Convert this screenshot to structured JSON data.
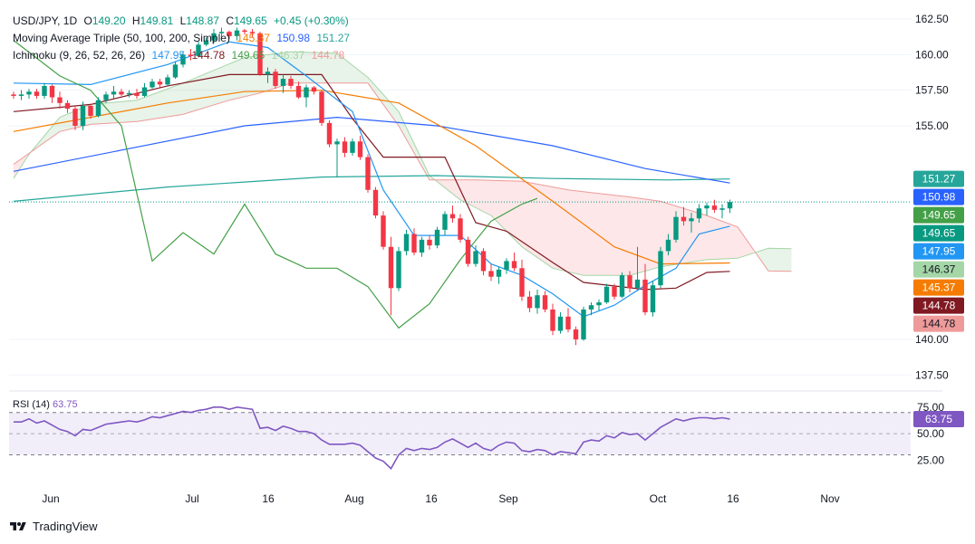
{
  "header": {
    "symbol": "USD/JPY, 1D",
    "ohlc": {
      "O": "149.20",
      "H": "149.81",
      "L": "148.87",
      "C": "149.65"
    },
    "change": "+0.45 (+0.30%)",
    "ma_label": "Moving Average Triple (50, 100, 200, Simple)",
    "ma_values": [
      "145.37",
      "150.98",
      "151.27"
    ],
    "ichimoku_label": "Ichimoku (9, 26, 52, 26, 26)",
    "ichimoku_values": [
      "147.95",
      "144.78",
      "149.65",
      "146.37",
      "144.78"
    ]
  },
  "colors": {
    "up": "#089981",
    "down": "#f23645",
    "ma50": "#f57c00",
    "ma100": "#2962ff",
    "ma200": "#26a69a",
    "tenkan": "#2196f3",
    "kijun": "#801922",
    "chikou": "#43a047",
    "spanA": "#a5d6a7",
    "spanB": "#ef9a9a",
    "rsi": "#7e57c2"
  },
  "price_axis": {
    "ticks": [
      "162.50",
      "160.00",
      "157.50",
      "155.00",
      "140.00",
      "137.50"
    ]
  },
  "price_labels": [
    {
      "text": "151.27",
      "value": 151.27,
      "bg": "#26a69a"
    },
    {
      "text": "150.98",
      "value": 150.98,
      "bg": "#2962ff"
    },
    {
      "text": "149.65",
      "value": 149.65,
      "bg": "#43a047"
    },
    {
      "text": "149.65",
      "value": 149.65,
      "bg": "#089981"
    },
    {
      "text": "147.95",
      "value": 147.95,
      "bg": "#2196f3"
    },
    {
      "text": "146.37",
      "value": 146.37,
      "bg": "#a5d6a7"
    },
    {
      "text": "145.37",
      "value": 145.37,
      "bg": "#f57c00"
    },
    {
      "text": "144.78",
      "value": 144.78,
      "bg": "#801922"
    },
    {
      "text": "144.78",
      "value": 144.78,
      "bg": "#ef9a9a"
    }
  ],
  "time_axis": {
    "ticks": [
      "Jun",
      "Jul",
      "16",
      "Aug",
      "16",
      "Sep",
      "Oct",
      "16",
      "Nov"
    ]
  },
  "rsi": {
    "label": "RSI (14)",
    "value": "63.75",
    "ticks": [
      "75.00",
      "50.00",
      "25.00"
    ],
    "upper": 70,
    "lower": 30
  },
  "chart_data": {
    "type": "candlestick",
    "ylim": [
      136.5,
      163.2
    ],
    "candles": [
      [
        157.2,
        157.4,
        156.9,
        157.1
      ],
      [
        157.1,
        157.5,
        156.8,
        157.2
      ],
      [
        157.2,
        157.6,
        156.9,
        157.4
      ],
      [
        157.4,
        157.6,
        156.9,
        157.1
      ],
      [
        157.1,
        158.0,
        156.9,
        157.8
      ],
      [
        157.8,
        157.9,
        156.6,
        157.0
      ],
      [
        157.0,
        157.4,
        156.2,
        156.6
      ],
      [
        156.6,
        156.8,
        155.9,
        156.2
      ],
      [
        156.2,
        156.4,
        154.7,
        155.0
      ],
      [
        155.0,
        156.7,
        154.7,
        156.4
      ],
      [
        156.4,
        156.5,
        155.5,
        155.7
      ],
      [
        155.7,
        157.0,
        155.6,
        156.8
      ],
      [
        156.8,
        157.4,
        156.6,
        157.2
      ],
      [
        157.2,
        157.8,
        156.9,
        157.4
      ],
      [
        157.4,
        157.6,
        157.1,
        157.2
      ],
      [
        157.2,
        157.5,
        157.0,
        157.3
      ],
      [
        157.3,
        157.6,
        156.9,
        157.1
      ],
      [
        157.1,
        158.0,
        157.0,
        157.7
      ],
      [
        157.7,
        158.3,
        157.6,
        158.1
      ],
      [
        158.1,
        158.3,
        157.7,
        157.9
      ],
      [
        157.9,
        158.6,
        157.8,
        158.4
      ],
      [
        158.4,
        159.5,
        158.3,
        159.3
      ],
      [
        159.3,
        160.2,
        159.1,
        160.0
      ],
      [
        160.0,
        160.4,
        159.6,
        159.9
      ],
      [
        159.9,
        160.9,
        159.8,
        160.7
      ],
      [
        160.7,
        161.2,
        160.6,
        161.0
      ],
      [
        161.0,
        161.8,
        160.8,
        161.5
      ],
      [
        161.5,
        161.9,
        161.2,
        161.6
      ],
      [
        161.6,
        161.7,
        161.1,
        161.3
      ],
      [
        161.3,
        161.9,
        161.0,
        161.7
      ],
      [
        161.7,
        161.8,
        161.4,
        161.6
      ],
      [
        161.6,
        161.8,
        161.2,
        161.5
      ],
      [
        161.5,
        161.6,
        158.5,
        158.6
      ],
      [
        158.6,
        159.1,
        158.0,
        158.8
      ],
      [
        158.8,
        159.0,
        157.6,
        157.8
      ],
      [
        157.8,
        158.6,
        157.3,
        158.3
      ],
      [
        158.3,
        158.5,
        157.6,
        157.8
      ],
      [
        157.8,
        158.1,
        156.9,
        157.0
      ],
      [
        157.0,
        157.9,
        156.3,
        157.7
      ],
      [
        157.7,
        157.8,
        157.2,
        157.4
      ],
      [
        157.4,
        157.5,
        155.0,
        155.2
      ],
      [
        155.2,
        155.4,
        153.5,
        153.7
      ],
      [
        153.7,
        154.1,
        151.4,
        153.9
      ],
      [
        153.9,
        154.2,
        152.8,
        153.1
      ],
      [
        153.1,
        154.1,
        152.9,
        153.9
      ],
      [
        153.9,
        154.3,
        152.6,
        152.8
      ],
      [
        152.8,
        153.0,
        150.3,
        150.5
      ],
      [
        150.5,
        150.7,
        148.5,
        148.7
      ],
      [
        148.7,
        149.0,
        146.3,
        146.5
      ],
      [
        146.5,
        147.2,
        141.7,
        143.6
      ],
      [
        143.6,
        146.5,
        143.4,
        146.2
      ],
      [
        146.2,
        147.7,
        145.9,
        147.4
      ],
      [
        147.4,
        147.8,
        145.9,
        146.1
      ],
      [
        146.1,
        147.2,
        145.8,
        147.0
      ],
      [
        147.0,
        147.3,
        146.3,
        146.6
      ],
      [
        146.6,
        147.9,
        146.4,
        147.7
      ],
      [
        147.7,
        149.0,
        147.3,
        148.8
      ],
      [
        148.8,
        149.4,
        148.2,
        148.5
      ],
      [
        148.5,
        148.8,
        146.8,
        147.0
      ],
      [
        147.0,
        147.2,
        145.1,
        145.3
      ],
      [
        145.3,
        146.6,
        145.1,
        146.2
      ],
      [
        146.2,
        146.4,
        144.5,
        144.8
      ],
      [
        144.8,
        145.3,
        144.1,
        144.4
      ],
      [
        144.4,
        145.1,
        143.9,
        144.9
      ],
      [
        144.9,
        145.7,
        144.6,
        145.5
      ],
      [
        145.5,
        146.1,
        144.8,
        145.0
      ],
      [
        145.0,
        145.6,
        142.7,
        143.0
      ],
      [
        143.0,
        143.4,
        141.9,
        142.2
      ],
      [
        142.2,
        143.5,
        141.8,
        143.1
      ],
      [
        143.1,
        143.4,
        141.9,
        142.1
      ],
      [
        142.1,
        142.5,
        140.3,
        140.6
      ],
      [
        140.6,
        141.9,
        140.4,
        141.6
      ],
      [
        141.6,
        142.2,
        140.5,
        140.7
      ],
      [
        140.7,
        140.9,
        139.6,
        140.0
      ],
      [
        140.0,
        142.3,
        139.9,
        142.1
      ],
      [
        142.1,
        142.6,
        141.7,
        142.4
      ],
      [
        142.4,
        142.8,
        142.0,
        142.6
      ],
      [
        142.6,
        143.9,
        142.5,
        143.7
      ],
      [
        143.7,
        143.9,
        142.8,
        143.0
      ],
      [
        143.0,
        144.7,
        142.9,
        144.5
      ],
      [
        144.5,
        144.8,
        143.3,
        143.6
      ],
      [
        143.6,
        146.5,
        143.4,
        144.2
      ],
      [
        144.2,
        145.3,
        141.7,
        141.9
      ],
      [
        141.9,
        144.1,
        141.6,
        143.8
      ],
      [
        143.8,
        146.5,
        143.6,
        146.2
      ],
      [
        146.2,
        147.4,
        145.9,
        147.0
      ],
      [
        147.0,
        149.0,
        146.8,
        148.6
      ],
      [
        148.6,
        149.3,
        148.0,
        148.3
      ],
      [
        148.3,
        148.9,
        147.5,
        148.5
      ],
      [
        148.5,
        149.5,
        148.2,
        149.2
      ],
      [
        149.2,
        149.6,
        148.7,
        149.4
      ],
      [
        149.4,
        149.8,
        148.9,
        149.1
      ],
      [
        149.1,
        149.5,
        148.5,
        149.2
      ],
      [
        149.2,
        149.81,
        148.87,
        149.65
      ]
    ],
    "rsi_values": [
      61,
      61,
      64,
      60,
      62,
      58,
      54,
      52,
      48,
      54,
      53,
      56,
      59,
      60,
      61,
      62,
      61,
      63,
      66,
      65,
      67,
      69,
      71,
      70,
      72,
      73,
      75,
      75,
      73,
      75,
      74,
      73,
      55,
      56,
      53,
      57,
      55,
      52,
      52,
      50,
      44,
      40,
      40,
      40,
      41,
      39,
      33,
      27,
      24,
      17,
      30,
      36,
      34,
      36,
      35,
      37,
      42,
      45,
      41,
      37,
      41,
      36,
      34,
      39,
      42,
      41,
      34,
      33,
      35,
      34,
      30,
      33,
      32,
      31,
      42,
      44,
      43,
      48,
      46,
      51,
      49,
      50,
      44,
      50,
      56,
      60,
      64,
      62,
      64,
      65,
      65,
      64,
      65,
      63.75
    ],
    "ma50": [
      [
        0,
        154.6
      ],
      [
        10,
        155.6
      ],
      [
        20,
        156.6
      ],
      [
        30,
        157.4
      ],
      [
        40,
        157.5
      ],
      [
        50,
        156.6
      ],
      [
        60,
        153.6
      ],
      [
        70,
        149.7
      ],
      [
        78,
        146.5
      ],
      [
        84,
        145.3
      ],
      [
        93,
        145.37
      ]
    ],
    "ma100": [
      [
        0,
        151.8
      ],
      [
        15,
        153.4
      ],
      [
        30,
        155.0
      ],
      [
        42,
        155.6
      ],
      [
        55,
        155.0
      ],
      [
        70,
        153.6
      ],
      [
        82,
        152.0
      ],
      [
        93,
        150.98
      ]
    ],
    "ma200": [
      [
        0,
        149.7
      ],
      [
        20,
        150.7
      ],
      [
        40,
        151.4
      ],
      [
        55,
        151.5
      ],
      [
        70,
        151.3
      ],
      [
        85,
        151.2
      ],
      [
        93,
        151.27
      ]
    ],
    "tenkan": [
      [
        0,
        158.0
      ],
      [
        10,
        157.9
      ],
      [
        20,
        159.3
      ],
      [
        28,
        160.9
      ],
      [
        33,
        160.5
      ],
      [
        38,
        158.5
      ],
      [
        44,
        156.0
      ],
      [
        48,
        150.5
      ],
      [
        52,
        147.3
      ],
      [
        58,
        147.3
      ],
      [
        62,
        145.3
      ],
      [
        66,
        144.5
      ],
      [
        70,
        143.2
      ],
      [
        74,
        141.6
      ],
      [
        78,
        142.4
      ],
      [
        82,
        143.8
      ],
      [
        86,
        145.0
      ],
      [
        89,
        147.4
      ],
      [
        93,
        147.95
      ]
    ],
    "kijun": [
      [
        0,
        156.0
      ],
      [
        10,
        156.5
      ],
      [
        20,
        157.8
      ],
      [
        28,
        158.6
      ],
      [
        33,
        158.6
      ],
      [
        40,
        158.6
      ],
      [
        44,
        155.5
      ],
      [
        48,
        152.8
      ],
      [
        56,
        152.8
      ],
      [
        60,
        148.2
      ],
      [
        64,
        147.6
      ],
      [
        70,
        145.4
      ],
      [
        74,
        144.0
      ],
      [
        82,
        143.5
      ],
      [
        86,
        143.6
      ],
      [
        90,
        144.7
      ],
      [
        93,
        144.78
      ]
    ],
    "chikou": [
      [
        0,
        161.0
      ],
      [
        6,
        158.5
      ],
      [
        10,
        157.5
      ],
      [
        14,
        155.0
      ],
      [
        18,
        145.5
      ],
      [
        22,
        147.5
      ],
      [
        26,
        146.0
      ],
      [
        30,
        149.5
      ],
      [
        34,
        146.0
      ],
      [
        38,
        145.0
      ],
      [
        42,
        145.0
      ],
      [
        46,
        143.7
      ],
      [
        50,
        140.8
      ],
      [
        54,
        142.5
      ],
      [
        58,
        145.6
      ],
      [
        62,
        148.3
      ],
      [
        66,
        149.5
      ],
      [
        68,
        149.9
      ]
    ],
    "span_a": [
      [
        0,
        151.3
      ],
      [
        2,
        153.0
      ],
      [
        6,
        155.6
      ],
      [
        10,
        156.5
      ],
      [
        16,
        156.8
      ],
      [
        22,
        158.0
      ],
      [
        30,
        159.8
      ],
      [
        36,
        160.2
      ],
      [
        42,
        160.1
      ],
      [
        46,
        158.4
      ],
      [
        50,
        156.0
      ],
      [
        54,
        151.5
      ],
      [
        58,
        149.8
      ],
      [
        62,
        148.7
      ],
      [
        66,
        146.5
      ],
      [
        70,
        145.0
      ],
      [
        74,
        144.5
      ],
      [
        80,
        144.5
      ],
      [
        84,
        145.1
      ],
      [
        90,
        145.6
      ],
      [
        94,
        145.7
      ],
      [
        98,
        146.4
      ],
      [
        101,
        146.37
      ]
    ],
    "span_b": [
      [
        0,
        152.3
      ],
      [
        6,
        154.6
      ],
      [
        10,
        155.1
      ],
      [
        16,
        155.3
      ],
      [
        22,
        155.8
      ],
      [
        28,
        156.8
      ],
      [
        32,
        157.3
      ],
      [
        36,
        158.0
      ],
      [
        42,
        158.0
      ],
      [
        46,
        158.0
      ],
      [
        50,
        155.0
      ],
      [
        54,
        151.2
      ],
      [
        60,
        151.2
      ],
      [
        66,
        151.1
      ],
      [
        72,
        150.5
      ],
      [
        80,
        150.0
      ],
      [
        84,
        149.7
      ],
      [
        90,
        148.7
      ],
      [
        94,
        147.9
      ],
      [
        98,
        144.8
      ],
      [
        101,
        144.78
      ]
    ]
  }
}
